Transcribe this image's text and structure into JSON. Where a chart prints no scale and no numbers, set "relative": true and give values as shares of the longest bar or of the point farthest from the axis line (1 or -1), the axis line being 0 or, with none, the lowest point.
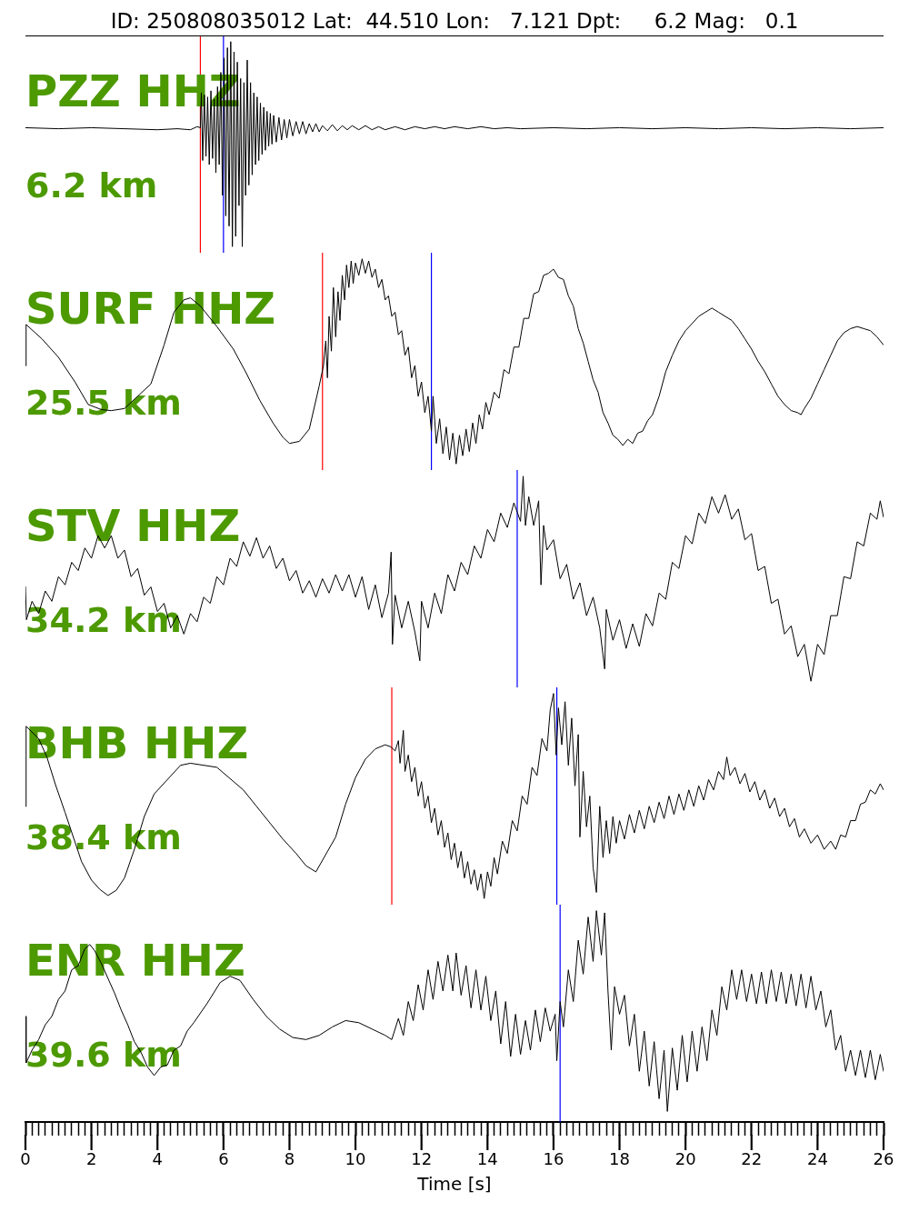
{
  "chart_data": [
    {
      "type": "line",
      "title": "PZZ HHZ",
      "subtitle": "6.2 km",
      "annotations": [
        "ID: 250808035012 Lat:  44.510 Lon:   7.121 Dpt:     6.2 Mag:   0.1"
      ],
      "relative": true,
      "tick_labels": false,
      "xlim": [
        0,
        26
      ],
      "x": [
        0,
        1,
        2,
        3,
        4,
        4.6,
        5,
        5.2,
        5.3,
        5.33,
        5.37,
        5.42,
        5.47,
        5.52,
        5.57,
        5.62,
        5.67,
        5.72,
        5.77,
        5.82,
        5.87,
        5.92,
        5.97,
        6.02,
        6.07,
        6.12,
        6.17,
        6.22,
        6.27,
        6.32,
        6.37,
        6.42,
        6.47,
        6.52,
        6.57,
        6.62,
        6.67,
        6.72,
        6.77,
        6.82,
        6.87,
        6.92,
        6.97,
        7.02,
        7.07,
        7.12,
        7.17,
        7.22,
        7.27,
        7.32,
        7.37,
        7.42,
        7.47,
        7.52,
        7.6,
        7.68,
        7.76,
        7.84,
        7.92,
        8,
        8.1,
        8.2,
        8.3,
        8.4,
        8.5,
        8.6,
        8.7,
        8.8,
        8.9,
        9,
        9.15,
        9.3,
        9.45,
        9.6,
        9.75,
        9.9,
        10.1,
        10.3,
        10.5,
        10.7,
        10.9,
        11.2,
        11.5,
        11.8,
        12.1,
        12.4,
        12.7,
        13,
        13.4,
        13.8,
        14.2,
        14.6,
        15,
        16,
        17,
        18,
        19,
        20,
        21,
        22,
        23,
        24,
        25,
        26
      ],
      "series": [
        {
          "color": "#000000",
          "values": [
            0.58,
            0.575,
            0.58,
            0.575,
            0.57,
            0.575,
            0.57,
            0.585,
            0.58,
            0.75,
            0.42,
            0.74,
            0.44,
            0.73,
            0.4,
            0.76,
            0.43,
            0.72,
            0.36,
            0.78,
            0.4,
            0.85,
            0.25,
            0.92,
            0.15,
            0.97,
            0.1,
            1,
            0,
            0.95,
            0.05,
            0.9,
            0.2,
            0.82,
            0,
            0.8,
            0.25,
            0.91,
            0.3,
            0.8,
            0.35,
            0.75,
            0.4,
            0.73,
            0.42,
            0.7,
            0.45,
            0.68,
            0.47,
            0.66,
            0.49,
            0.65,
            0.5,
            0.64,
            0.51,
            0.63,
            0.52,
            0.62,
            0.53,
            0.62,
            0.54,
            0.61,
            0.55,
            0.61,
            0.55,
            0.6,
            0.56,
            0.6,
            0.56,
            0.59,
            0.565,
            0.595,
            0.565,
            0.59,
            0.57,
            0.59,
            0.57,
            0.59,
            0.57,
            0.585,
            0.57,
            0.585,
            0.57,
            0.585,
            0.575,
            0.585,
            0.575,
            0.585,
            0.575,
            0.585,
            0.575,
            0.58,
            0.575,
            0.58,
            0.575,
            0.58,
            0.575,
            0.58,
            0.575,
            0.58,
            0.575,
            0.58,
            0.575,
            0.58
          ]
        }
      ],
      "ref_lines": [
        {
          "axis": "x",
          "value": 5.3,
          "color": "#ff0000"
        },
        {
          "axis": "x",
          "value": 6.0,
          "color": "#0000ff"
        }
      ]
    },
    {
      "type": "line",
      "title": "SURF HHZ",
      "subtitle": "25.5 km",
      "relative": true,
      "tick_labels": false,
      "xlim": [
        0,
        26
      ],
      "x": [
        0,
        0.02,
        0.5,
        1,
        1.5,
        1.9,
        2.3,
        2.6,
        3,
        3.8,
        4.2,
        4.5,
        4.8,
        5,
        5.3,
        5.8,
        6.3,
        6.7,
        7.1,
        7.5,
        7.8,
        8,
        8.3,
        8.6,
        8.9,
        9.03,
        9.1,
        9.15,
        9.2,
        9.27,
        9.33,
        9.4,
        9.47,
        9.53,
        9.6,
        9.67,
        9.73,
        9.8,
        9.87,
        9.93,
        10,
        10.1,
        10.2,
        10.3,
        10.4,
        10.5,
        10.6,
        10.7,
        10.8,
        10.9,
        11,
        11.1,
        11.2,
        11.3,
        11.4,
        11.5,
        11.6,
        11.7,
        11.8,
        11.9,
        12,
        12.1,
        12.2,
        12.3,
        12.35,
        12.45,
        12.55,
        12.65,
        12.75,
        12.85,
        12.95,
        13.05,
        13.15,
        13.25,
        13.35,
        13.45,
        13.55,
        13.65,
        13.75,
        13.85,
        13.95,
        14.05,
        14.2,
        14.35,
        14.5,
        14.65,
        14.8,
        14.95,
        15.1,
        15.25,
        15.4,
        15.55,
        15.7,
        15.85,
        16,
        16.15,
        16.3,
        16.45,
        16.6,
        16.75,
        16.9,
        17.05,
        17.2,
        17.35,
        17.5,
        17.65,
        17.8,
        17.95,
        18.1,
        18.25,
        18.4,
        18.55,
        18.7,
        18.85,
        19,
        19.2,
        19.4,
        19.6,
        19.8,
        20,
        20.4,
        20.6,
        20.8,
        21,
        21.4,
        21.6,
        21.8,
        22,
        22.2,
        22.4,
        22.6,
        22.8,
        23,
        23.2,
        23.4,
        23.5,
        23.6,
        23.8,
        24,
        24.2,
        24.4,
        24.6,
        24.8,
        25,
        25.2,
        25.4,
        25.6,
        25.8,
        26
      ],
      "series": [
        {
          "color": "#000000",
          "values": [
            0.48,
            0.68,
            0.61,
            0.52,
            0.4,
            0.29,
            0.265,
            0.26,
            0.27,
            0.39,
            0.58,
            0.74,
            0.8,
            0.81,
            0.77,
            0.67,
            0.56,
            0.44,
            0.31,
            0.2,
            0.13,
            0.1,
            0.11,
            0.17,
            0.38,
            0.48,
            0.6,
            0.42,
            0.72,
            0.55,
            0.86,
            0.62,
            0.84,
            0.7,
            0.92,
            0.8,
            0.97,
            0.86,
            0.99,
            0.88,
            0.98,
            0.92,
            1,
            0.93,
            0.99,
            0.91,
            0.95,
            0.86,
            0.9,
            0.8,
            0.82,
            0.72,
            0.74,
            0.63,
            0.65,
            0.53,
            0.57,
            0.42,
            0.48,
            0.33,
            0.4,
            0.25,
            0.33,
            0.16,
            0.33,
            0.1,
            0.22,
            0.05,
            0.18,
            0.02,
            0.15,
            0,
            0.14,
            0.04,
            0.17,
            0.06,
            0.2,
            0.1,
            0.24,
            0.17,
            0.3,
            0.24,
            0.35,
            0.32,
            0.46,
            0.44,
            0.57,
            0.57,
            0.71,
            0.71,
            0.83,
            0.84,
            0.92,
            0.93,
            0.95,
            0.91,
            0.9,
            0.82,
            0.77,
            0.66,
            0.59,
            0.5,
            0.41,
            0.35,
            0.25,
            0.2,
            0.14,
            0.12,
            0.09,
            0.12,
            0.1,
            0.15,
            0.16,
            0.21,
            0.24,
            0.33,
            0.45,
            0.53,
            0.6,
            0.65,
            0.72,
            0.74,
            0.76,
            0.74,
            0.7,
            0.66,
            0.61,
            0.56,
            0.5,
            0.45,
            0.39,
            0.33,
            0.29,
            0.26,
            0.25,
            0.24,
            0.27,
            0.32,
            0.39,
            0.46,
            0.53,
            0.6,
            0.64,
            0.66,
            0.67,
            0.66,
            0.65,
            0.62,
            0.58
          ]
        }
      ],
      "ref_lines": [
        {
          "axis": "x",
          "value": 9.0,
          "color": "#ff0000"
        },
        {
          "axis": "x",
          "value": 12.3,
          "color": "#0000ff"
        }
      ]
    },
    {
      "type": "line",
      "title": "STV HHZ",
      "subtitle": "34.2 km",
      "relative": true,
      "tick_labels": false,
      "xlim": [
        0,
        26
      ],
      "x": [
        0,
        0.03,
        0.2,
        0.4,
        0.6,
        0.8,
        1,
        1.2,
        1.4,
        1.6,
        1.8,
        2,
        2.2,
        2.4,
        2.6,
        2.8,
        3,
        3.2,
        3.4,
        3.6,
        3.8,
        4,
        4.2,
        4.4,
        4.6,
        4.8,
        5,
        5.2,
        5.4,
        5.6,
        5.8,
        6,
        6.2,
        6.4,
        6.6,
        6.8,
        7,
        7.2,
        7.4,
        7.6,
        7.8,
        8,
        8.2,
        8.4,
        8.6,
        8.8,
        9,
        9.2,
        9.4,
        9.6,
        9.8,
        10,
        10.2,
        10.4,
        10.6,
        10.8,
        11,
        11.08,
        11.12,
        11.2,
        11.4,
        11.6,
        11.8,
        11.95,
        12,
        12.2,
        12.4,
        12.6,
        12.8,
        13,
        13.2,
        13.4,
        13.6,
        13.8,
        14,
        14.2,
        14.4,
        14.6,
        14.8,
        15,
        15.08,
        15.15,
        15.25,
        15.4,
        15.55,
        15.62,
        15.7,
        15.8,
        16,
        16.2,
        16.4,
        16.6,
        16.8,
        17,
        17.2,
        17.4,
        17.55,
        17.6,
        17.8,
        18,
        18.2,
        18.4,
        18.6,
        18.8,
        19,
        19.2,
        19.4,
        19.6,
        19.8,
        20,
        20.2,
        20.4,
        20.6,
        20.8,
        21,
        21.2,
        21.4,
        21.6,
        21.8,
        22,
        22.2,
        22.4,
        22.6,
        22.8,
        23,
        23.2,
        23.4,
        23.6,
        23.8,
        24,
        24.2,
        24.4,
        24.6,
        24.8,
        25,
        25.2,
        25.4,
        25.6,
        25.8,
        25.9,
        26
      ],
      "series": [
        {
          "color": "#000000",
          "values": [
            0.46,
            0.3,
            0.39,
            0.33,
            0.44,
            0.39,
            0.51,
            0.47,
            0.58,
            0.54,
            0.65,
            0.6,
            0.71,
            0.65,
            0.71,
            0.6,
            0.64,
            0.51,
            0.55,
            0.42,
            0.46,
            0.34,
            0.38,
            0.26,
            0.32,
            0.23,
            0.33,
            0.29,
            0.41,
            0.38,
            0.51,
            0.47,
            0.6,
            0.56,
            0.68,
            0.61,
            0.7,
            0.6,
            0.66,
            0.55,
            0.6,
            0.49,
            0.54,
            0.43,
            0.49,
            0.41,
            0.5,
            0.43,
            0.52,
            0.44,
            0.52,
            0.41,
            0.51,
            0.35,
            0.47,
            0.31,
            0.43,
            0.63,
            0.18,
            0.42,
            0.26,
            0.39,
            0.24,
            0.1,
            0.39,
            0.26,
            0.43,
            0.33,
            0.52,
            0.44,
            0.58,
            0.52,
            0.66,
            0.6,
            0.74,
            0.68,
            0.82,
            0.75,
            0.87,
            0.78,
            1,
            0.76,
            0.9,
            0.76,
            0.88,
            0.47,
            0.76,
            0.64,
            0.69,
            0.5,
            0.57,
            0.4,
            0.48,
            0.32,
            0.41,
            0.26,
            0.06,
            0.35,
            0.2,
            0.3,
            0.16,
            0.28,
            0.17,
            0.33,
            0.27,
            0.43,
            0.4,
            0.58,
            0.55,
            0.71,
            0.67,
            0.82,
            0.77,
            0.9,
            0.82,
            0.91,
            0.79,
            0.84,
            0.69,
            0.72,
            0.54,
            0.56,
            0.38,
            0.4,
            0.23,
            0.27,
            0.12,
            0.18,
            0,
            0.18,
            0.13,
            0.32,
            0.32,
            0.51,
            0.5,
            0.68,
            0.66,
            0.82,
            0.79,
            0.88,
            0.8
          ]
        }
      ],
      "ref_lines": [
        {
          "axis": "x",
          "value": 14.9,
          "color": "#0000ff"
        }
      ]
    },
    {
      "type": "line",
      "title": "BHB HHZ",
      "subtitle": "38.4 km",
      "relative": true,
      "tick_labels": false,
      "xlim": [
        0,
        26
      ],
      "x": [
        0,
        0.02,
        0.4,
        0.65,
        0.9,
        1.2,
        1.7,
        2,
        2.25,
        2.5,
        2.75,
        3,
        3.3,
        3.6,
        3.9,
        4.7,
        5,
        5.8,
        6.6,
        7,
        7.8,
        8.2,
        8.5,
        8.8,
        9.4,
        9.7,
        10,
        10.3,
        10.6,
        10.9,
        11.07,
        11.2,
        11.3,
        11.35,
        11.45,
        11.5,
        11.6,
        11.7,
        11.8,
        11.9,
        12,
        12.1,
        12.2,
        12.3,
        12.4,
        12.5,
        12.6,
        12.7,
        12.8,
        12.9,
        13,
        13.1,
        13.2,
        13.3,
        13.4,
        13.5,
        13.6,
        13.7,
        13.8,
        13.9,
        14,
        14.1,
        14.2,
        14.3,
        14.45,
        14.6,
        14.75,
        14.9,
        15.05,
        15.2,
        15.35,
        15.5,
        15.65,
        15.8,
        15.9,
        16,
        16.08,
        16.15,
        16.25,
        16.35,
        16.45,
        16.55,
        16.65,
        16.75,
        16.8,
        16.9,
        17,
        17.1,
        17.2,
        17.3,
        17.4,
        17.5,
        17.6,
        17.7,
        17.8,
        17.9,
        18,
        18.15,
        18.3,
        18.45,
        18.6,
        18.75,
        18.9,
        19.05,
        19.2,
        19.35,
        19.5,
        19.65,
        19.8,
        19.95,
        20.1,
        20.25,
        20.4,
        20.55,
        20.7,
        20.85,
        21,
        21.15,
        21.25,
        21.35,
        21.5,
        21.65,
        21.8,
        21.95,
        22.1,
        22.25,
        22.4,
        22.55,
        22.7,
        22.85,
        23,
        23.15,
        23.3,
        23.45,
        23.6,
        23.8,
        24,
        24.2,
        24.4,
        24.55,
        24.7,
        24.85,
        25,
        25.15,
        25.3,
        25.45,
        25.6,
        25.75,
        25.9,
        26
      ],
      "series": [
        {
          "color": "#000000",
          "values": [
            0.45,
            0.84,
            0.78,
            0.69,
            0.56,
            0.42,
            0.18,
            0.09,
            0.045,
            0.015,
            0.04,
            0.1,
            0.24,
            0.4,
            0.51,
            0.65,
            0.66,
            0.64,
            0.53,
            0.45,
            0.29,
            0.22,
            0.16,
            0.13,
            0.3,
            0.46,
            0.59,
            0.68,
            0.73,
            0.75,
            0.74,
            0.72,
            0.77,
            0.66,
            0.82,
            0.62,
            0.7,
            0.57,
            0.64,
            0.5,
            0.57,
            0.44,
            0.5,
            0.37,
            0.44,
            0.31,
            0.38,
            0.25,
            0.32,
            0.19,
            0.27,
            0.15,
            0.23,
            0.1,
            0.18,
            0.07,
            0.14,
            0.04,
            0.12,
            0,
            0.13,
            0.06,
            0.2,
            0.12,
            0.28,
            0.22,
            0.38,
            0.33,
            0.5,
            0.46,
            0.64,
            0.6,
            0.78,
            0.72,
            0.92,
            1,
            0.7,
            0.93,
            0.75,
            0.96,
            0.65,
            0.88,
            0.55,
            0.8,
            0.3,
            0.62,
            0.35,
            0.5,
            0.15,
            0.03,
            0.45,
            0.2,
            0.38,
            0.22,
            0.4,
            0.27,
            0.38,
            0.29,
            0.41,
            0.32,
            0.43,
            0.34,
            0.45,
            0.37,
            0.47,
            0.39,
            0.5,
            0.41,
            0.51,
            0.43,
            0.53,
            0.45,
            0.55,
            0.48,
            0.58,
            0.53,
            0.62,
            0.58,
            0.69,
            0.6,
            0.64,
            0.56,
            0.61,
            0.52,
            0.57,
            0.48,
            0.53,
            0.44,
            0.49,
            0.4,
            0.44,
            0.35,
            0.39,
            0.3,
            0.34,
            0.27,
            0.31,
            0.24,
            0.28,
            0.24,
            0.31,
            0.3,
            0.38,
            0.38,
            0.46,
            0.47,
            0.53,
            0.51,
            0.56,
            0.53
          ]
        }
      ],
      "ref_lines": [
        {
          "axis": "x",
          "value": 11.1,
          "color": "#ff0000"
        },
        {
          "axis": "x",
          "value": 16.1,
          "color": "#0000ff"
        }
      ]
    },
    {
      "type": "line",
      "title": "ENR HHZ",
      "subtitle": "39.6 km",
      "xlabel": "Time [s]",
      "relative": true,
      "tick_labels": "x",
      "xlim": [
        0,
        26
      ],
      "xticks": [
        0,
        {
          "value": 0.2,
          "label": null
        },
        {
          "value": 0.4,
          "label": null
        },
        {
          "value": 0.6,
          "label": null
        },
        {
          "value": 0.8,
          "label": null
        },
        {
          "value": 1,
          "label": null
        },
        {
          "value": 1.2,
          "label": null
        },
        {
          "value": 1.4,
          "label": null
        },
        {
          "value": 1.6,
          "label": null
        },
        {
          "value": 1.8,
          "label": null
        },
        2,
        {
          "value": 2.2,
          "label": null
        },
        {
          "value": 2.4,
          "label": null
        },
        {
          "value": 2.6,
          "label": null
        },
        {
          "value": 2.8,
          "label": null
        },
        {
          "value": 3,
          "label": null
        },
        {
          "value": 3.2,
          "label": null
        },
        {
          "value": 3.4,
          "label": null
        },
        {
          "value": 3.6,
          "label": null
        },
        {
          "value": 3.8,
          "label": null
        },
        4,
        {
          "value": 4.2,
          "label": null
        },
        {
          "value": 4.4,
          "label": null
        },
        {
          "value": 4.6,
          "label": null
        },
        {
          "value": 4.8,
          "label": null
        },
        {
          "value": 5,
          "label": null
        },
        {
          "value": 5.2,
          "label": null
        },
        {
          "value": 5.4,
          "label": null
        },
        {
          "value": 5.6,
          "label": null
        },
        {
          "value": 5.8,
          "label": null
        },
        6,
        {
          "value": 6.2,
          "label": null
        },
        {
          "value": 6.4,
          "label": null
        },
        {
          "value": 6.6,
          "label": null
        },
        {
          "value": 6.8,
          "label": null
        },
        {
          "value": 7,
          "label": null
        },
        {
          "value": 7.2,
          "label": null
        },
        {
          "value": 7.4,
          "label": null
        },
        {
          "value": 7.6,
          "label": null
        },
        {
          "value": 7.8,
          "label": null
        },
        8,
        {
          "value": 8.2,
          "label": null
        },
        {
          "value": 8.4,
          "label": null
        },
        {
          "value": 8.6,
          "label": null
        },
        {
          "value": 8.8,
          "label": null
        },
        {
          "value": 9,
          "label": null
        },
        {
          "value": 9.2,
          "label": null
        },
        {
          "value": 9.4,
          "label": null
        },
        {
          "value": 9.6,
          "label": null
        },
        {
          "value": 9.8,
          "label": null
        },
        10,
        {
          "value": 10.2,
          "label": null
        },
        {
          "value": 10.4,
          "label": null
        },
        {
          "value": 10.6,
          "label": null
        },
        {
          "value": 10.8,
          "label": null
        },
        {
          "value": 11,
          "label": null
        },
        {
          "value": 11.2,
          "label": null
        },
        {
          "value": 11.4,
          "label": null
        },
        {
          "value": 11.6,
          "label": null
        },
        {
          "value": 11.8,
          "label": null
        },
        12,
        {
          "value": 12.2,
          "label": null
        },
        {
          "value": 12.4,
          "label": null
        },
        {
          "value": 12.6,
          "label": null
        },
        {
          "value": 12.8,
          "label": null
        },
        {
          "value": 13,
          "label": null
        },
        {
          "value": 13.2,
          "label": null
        },
        {
          "value": 13.4,
          "label": null
        },
        {
          "value": 13.6,
          "label": null
        },
        {
          "value": 13.8,
          "label": null
        },
        14,
        {
          "value": 14.2,
          "label": null
        },
        {
          "value": 14.4,
          "label": null
        },
        {
          "value": 14.6,
          "label": null
        },
        {
          "value": 14.8,
          "label": null
        },
        {
          "value": 15,
          "label": null
        },
        {
          "value": 15.2,
          "label": null
        },
        {
          "value": 15.4,
          "label": null
        },
        {
          "value": 15.6,
          "label": null
        },
        {
          "value": 15.8,
          "label": null
        },
        16,
        {
          "value": 16.2,
          "label": null
        },
        {
          "value": 16.4,
          "label": null
        },
        {
          "value": 16.6,
          "label": null
        },
        {
          "value": 16.8,
          "label": null
        },
        {
          "value": 17,
          "label": null
        },
        {
          "value": 17.2,
          "label": null
        },
        {
          "value": 17.4,
          "label": null
        },
        {
          "value": 17.6,
          "label": null
        },
        {
          "value": 17.8,
          "label": null
        },
        18,
        {
          "value": 18.2,
          "label": null
        },
        {
          "value": 18.4,
          "label": null
        },
        {
          "value": 18.6,
          "label": null
        },
        {
          "value": 18.8,
          "label": null
        },
        {
          "value": 19,
          "label": null
        },
        {
          "value": 19.2,
          "label": null
        },
        {
          "value": 19.4,
          "label": null
        },
        {
          "value": 19.6,
          "label": null
        },
        {
          "value": 19.8,
          "label": null
        },
        20,
        {
          "value": 20.2,
          "label": null
        },
        {
          "value": 20.4,
          "label": null
        },
        {
          "value": 20.6,
          "label": null
        },
        {
          "value": 20.8,
          "label": null
        },
        {
          "value": 21,
          "label": null
        },
        {
          "value": 21.2,
          "label": null
        },
        {
          "value": 21.4,
          "label": null
        },
        {
          "value": 21.6,
          "label": null
        },
        {
          "value": 21.8,
          "label": null
        },
        22,
        {
          "value": 22.2,
          "label": null
        },
        {
          "value": 22.4,
          "label": null
        },
        {
          "value": 22.6,
          "label": null
        },
        {
          "value": 22.8,
          "label": null
        },
        {
          "value": 23,
          "label": null
        },
        {
          "value": 23.2,
          "label": null
        },
        {
          "value": 23.4,
          "label": null
        },
        {
          "value": 23.6,
          "label": null
        },
        {
          "value": 23.8,
          "label": null
        },
        24,
        {
          "value": 24.2,
          "label": null
        },
        {
          "value": 24.4,
          "label": null
        },
        {
          "value": 24.6,
          "label": null
        },
        {
          "value": 24.8,
          "label": null
        },
        {
          "value": 25,
          "label": null
        },
        {
          "value": 25.2,
          "label": null
        },
        {
          "value": 25.4,
          "label": null
        },
        {
          "value": 25.6,
          "label": null
        },
        {
          "value": 25.8,
          "label": null
        },
        26
      ],
      "x": [
        0,
        0.02,
        0.2,
        0.4,
        0.6,
        0.8,
        1,
        1.2,
        1.4,
        1.6,
        1.8,
        1.95,
        2.1,
        2.3,
        2.5,
        2.7,
        2.9,
        3.1,
        3.3,
        3.5,
        3.7,
        3.9,
        4.1,
        4.3,
        4.5,
        4.7,
        4.9,
        5.1,
        5.5,
        5.9,
        6.2,
        6.5,
        6.9,
        7.3,
        7.7,
        8.1,
        8.5,
        8.9,
        9.3,
        9.7,
        10.1,
        10.5,
        10.9,
        11.1,
        11.3,
        11.45,
        11.6,
        11.75,
        11.9,
        12.05,
        12.2,
        12.35,
        12.5,
        12.65,
        12.8,
        12.95,
        13.05,
        13.2,
        13.35,
        13.5,
        13.65,
        13.8,
        13.95,
        14.1,
        14.25,
        14.4,
        14.55,
        14.7,
        14.85,
        15,
        15.15,
        15.3,
        15.45,
        15.6,
        15.75,
        15.9,
        16.05,
        16.1,
        16.2,
        16.3,
        16.45,
        16.6,
        16.75,
        16.9,
        17.05,
        17.2,
        17.3,
        17.45,
        17.55,
        17.65,
        17.75,
        17.85,
        18,
        18.15,
        18.3,
        18.45,
        18.6,
        18.75,
        18.9,
        19.05,
        19.2,
        19.35,
        19.45,
        19.6,
        19.75,
        19.9,
        20.05,
        20.2,
        20.35,
        20.5,
        20.65,
        20.8,
        20.95,
        21.1,
        21.25,
        21.4,
        21.55,
        21.7,
        21.85,
        22,
        22.15,
        22.3,
        22.45,
        22.6,
        22.75,
        22.9,
        23.05,
        23.2,
        23.35,
        23.5,
        23.65,
        23.8,
        23.95,
        24.1,
        24.25,
        24.4,
        24.55,
        24.7,
        24.85,
        25,
        25.15,
        25.3,
        25.45,
        25.6,
        25.75,
        25.9,
        26
      ],
      "series": [
        {
          "color": "#000000",
          "values": [
            0.5,
            0.28,
            0.34,
            0.39,
            0.46,
            0.5,
            0.58,
            0.62,
            0.72,
            0.74,
            0.82,
            0.84,
            0.81,
            0.75,
            0.68,
            0.61,
            0.53,
            0.46,
            0.38,
            0.33,
            0.26,
            0.22,
            0.26,
            0.27,
            0.34,
            0.36,
            0.43,
            0.47,
            0.56,
            0.66,
            0.69,
            0.67,
            0.58,
            0.5,
            0.44,
            0.4,
            0.39,
            0.41,
            0.45,
            0.48,
            0.47,
            0.44,
            0.41,
            0.39,
            0.49,
            0.41,
            0.57,
            0.48,
            0.65,
            0.53,
            0.72,
            0.58,
            0.76,
            0.62,
            0.79,
            0.62,
            0.8,
            0.6,
            0.74,
            0.54,
            0.72,
            0.53,
            0.69,
            0.48,
            0.62,
            0.37,
            0.57,
            0.31,
            0.51,
            0.32,
            0.48,
            0.34,
            0.53,
            0.38,
            0.54,
            0.43,
            0.51,
            0.29,
            0.57,
            0.45,
            0.72,
            0.57,
            0.86,
            0.7,
            0.97,
            0.76,
            1,
            0.79,
            0.99,
            0.62,
            0.34,
            0.64,
            0.51,
            0.6,
            0.36,
            0.51,
            0.24,
            0.43,
            0.17,
            0.38,
            0.11,
            0.34,
            0.05,
            0.35,
            0.15,
            0.41,
            0.19,
            0.43,
            0.24,
            0.45,
            0.29,
            0.53,
            0.41,
            0.64,
            0.53,
            0.72,
            0.58,
            0.72,
            0.57,
            0.7,
            0.56,
            0.71,
            0.56,
            0.72,
            0.57,
            0.71,
            0.56,
            0.7,
            0.55,
            0.7,
            0.54,
            0.69,
            0.53,
            0.62,
            0.45,
            0.53,
            0.34,
            0.41,
            0.24,
            0.34,
            0.22,
            0.34,
            0.21,
            0.34,
            0.2,
            0.32,
            0.24
          ]
        }
      ],
      "ref_lines": [
        {
          "axis": "x",
          "value": 16.2,
          "color": "#0000ff"
        }
      ]
    }
  ]
}
